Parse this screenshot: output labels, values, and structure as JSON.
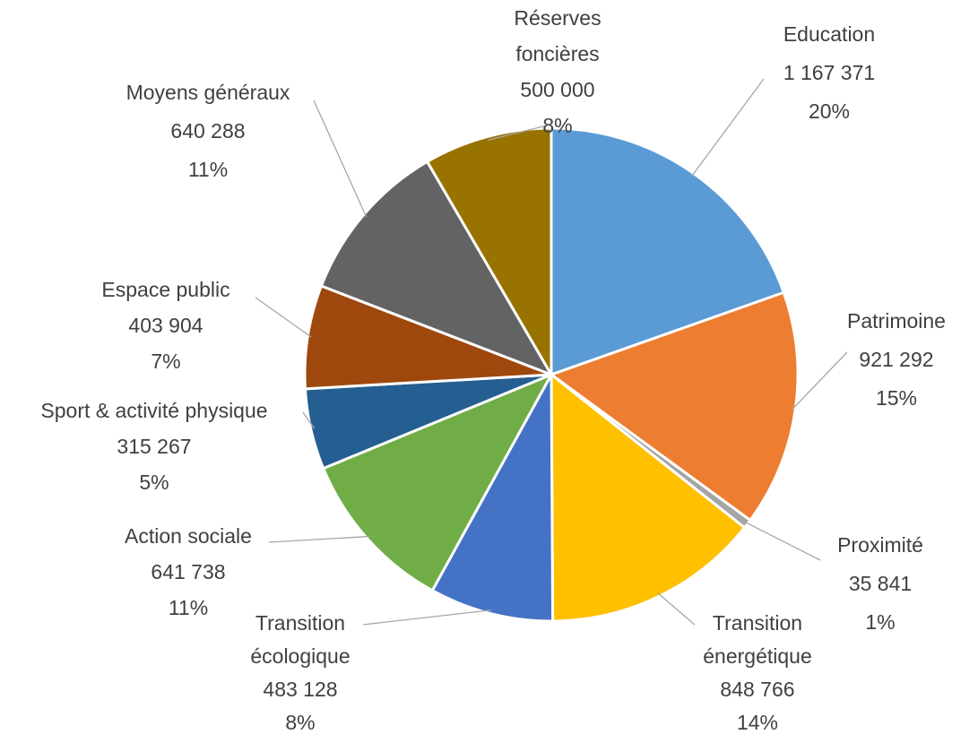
{
  "chart_data": {
    "type": "pie",
    "categories": [
      "Education",
      "Patrimoine",
      "Proximité",
      "Transition énergétique",
      "Transition écologique",
      "Action sociale",
      "Sport & activité physique",
      "Espace public",
      "Moyens généraux",
      "Réserves foncières"
    ],
    "values": [
      1167371,
      921292,
      35841,
      848766,
      483128,
      641738,
      315267,
      403904,
      640288,
      500000
    ],
    "value_labels": [
      "1 167 371",
      "921 292",
      "35 841",
      "848 766",
      "483 128",
      "641 738",
      "315 267",
      "403 904",
      "640 288",
      "500 000"
    ],
    "percentages": [
      20,
      15,
      1,
      14,
      8,
      11,
      5,
      7,
      11,
      8
    ],
    "percentage_labels": [
      "20%",
      "15%",
      "1%",
      "14%",
      "8%",
      "11%",
      "5%",
      "7%",
      "11%",
      "8%"
    ],
    "colors": [
      "#5b9bd5",
      "#ed7d31",
      "#a5a5a5",
      "#ffc000",
      "#4472c4",
      "#70ad47",
      "#255e91",
      "#9e480e",
      "#636363",
      "#997300"
    ]
  }
}
